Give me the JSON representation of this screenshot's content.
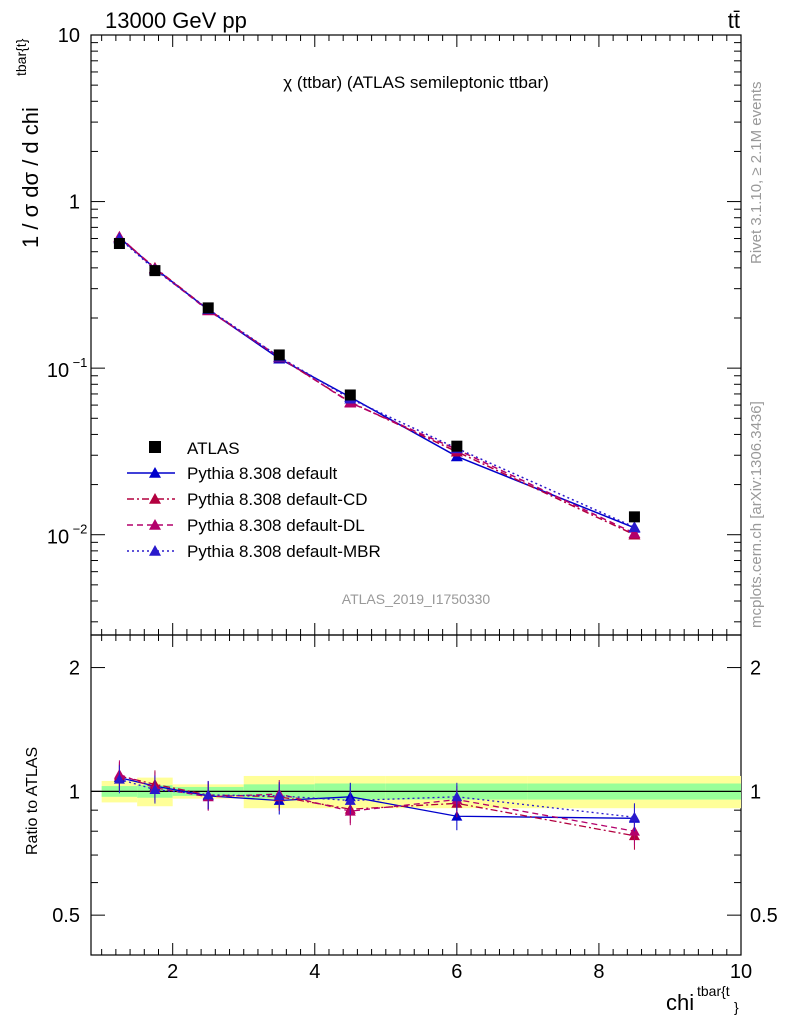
{
  "header": {
    "energy_label": "13000 GeV pp",
    "process_label": "tt̄",
    "plot_title": "χ (ttbar) (ATLAS semileptonic ttbar)",
    "analysis_id": "ATLAS_2019_I1750330",
    "side_rivet": "Rivet 3.1.10, ≥ 2.1M events",
    "side_mcplots": "mcplots.cern.ch [arXiv:1306.3436]"
  },
  "axes": {
    "y_main_label": "1 / σ dσ / d chi",
    "y_main_sup": "tbar{t}",
    "y_ratio_label": "Ratio to ATLAS",
    "x_label": "chi",
    "x_sup": "tbar{t",
    "x_sub": "}",
    "y_main_ticks": [
      "10",
      "1",
      "10",
      "10"
    ],
    "y_main_tick_exps": [
      "",
      "",
      "−1",
      "−2"
    ],
    "y_ratio_ticks": [
      "2",
      "1",
      "0.5"
    ],
    "x_ticks": [
      "2",
      "4",
      "6",
      "8",
      "10"
    ]
  },
  "colors": {
    "data": "#000000",
    "default": "#0000cc",
    "cd": "#b3003f",
    "dl": "#b3006b",
    "mbr": "#2a1acc",
    "band_inner": "#99ff99",
    "band_outer": "#ffff99",
    "meta": "#999999"
  },
  "chart_data": {
    "type": "line",
    "xlim": [
      0.85,
      10
    ],
    "ylim_main": [
      0.0025,
      10
    ],
    "ylim_ratio": [
      0.4,
      2.4
    ],
    "yscale_main": "log",
    "yscale_ratio": "log",
    "legend_placement": "bottom-left",
    "bins": [
      [
        1,
        1.5
      ],
      [
        1.5,
        2
      ],
      [
        2,
        3
      ],
      [
        3,
        4
      ],
      [
        4,
        5
      ],
      [
        5,
        7
      ],
      [
        7,
        10
      ]
    ],
    "x": [
      1.25,
      1.75,
      2.5,
      3.5,
      4.5,
      6.0,
      8.5
    ],
    "data": {
      "name": "ATLAS",
      "values": [
        0.56,
        0.385,
        0.23,
        0.12,
        0.069,
        0.034,
        0.0128
      ],
      "band_inner": [
        0.03,
        0.035,
        0.025,
        0.04,
        0.045,
        0.045,
        0.045
      ],
      "band_outer": [
        0.06,
        0.08,
        0.04,
        0.09,
        0.09,
        0.09,
        0.09
      ]
    },
    "series": [
      {
        "name": "Pythia 8.308 default",
        "color_key": "default",
        "dash": "solid",
        "values": [
          0.607,
          0.397,
          0.224,
          0.114,
          0.067,
          0.0295,
          0.011
        ],
        "ratio": [
          1.08,
          1.03,
          0.975,
          0.95,
          0.97,
          0.87,
          0.86
        ]
      },
      {
        "name": "Pythia 8.308 default-CD",
        "color_key": "cd",
        "dash": "dashdot",
        "values": [
          0.61,
          0.4,
          0.225,
          0.116,
          0.0625,
          0.0315,
          0.01
        ],
        "ratio": [
          1.09,
          1.04,
          0.98,
          0.97,
          0.905,
          0.935,
          0.78
        ]
      },
      {
        "name": "Pythia 8.308 default-DL",
        "color_key": "dl",
        "dash": "dashed",
        "values": [
          0.615,
          0.395,
          0.222,
          0.117,
          0.062,
          0.0325,
          0.0102
        ],
        "ratio": [
          1.1,
          1.02,
          0.97,
          0.985,
          0.895,
          0.955,
          0.8
        ]
      },
      {
        "name": "Pythia 8.308 default-MBR",
        "color_key": "mbr",
        "dash": "dotted",
        "values": [
          0.6,
          0.39,
          0.226,
          0.117,
          0.0655,
          0.033,
          0.0111
        ],
        "ratio": [
          1.07,
          1.01,
          0.98,
          0.975,
          0.95,
          0.97,
          0.865
        ]
      }
    ]
  }
}
